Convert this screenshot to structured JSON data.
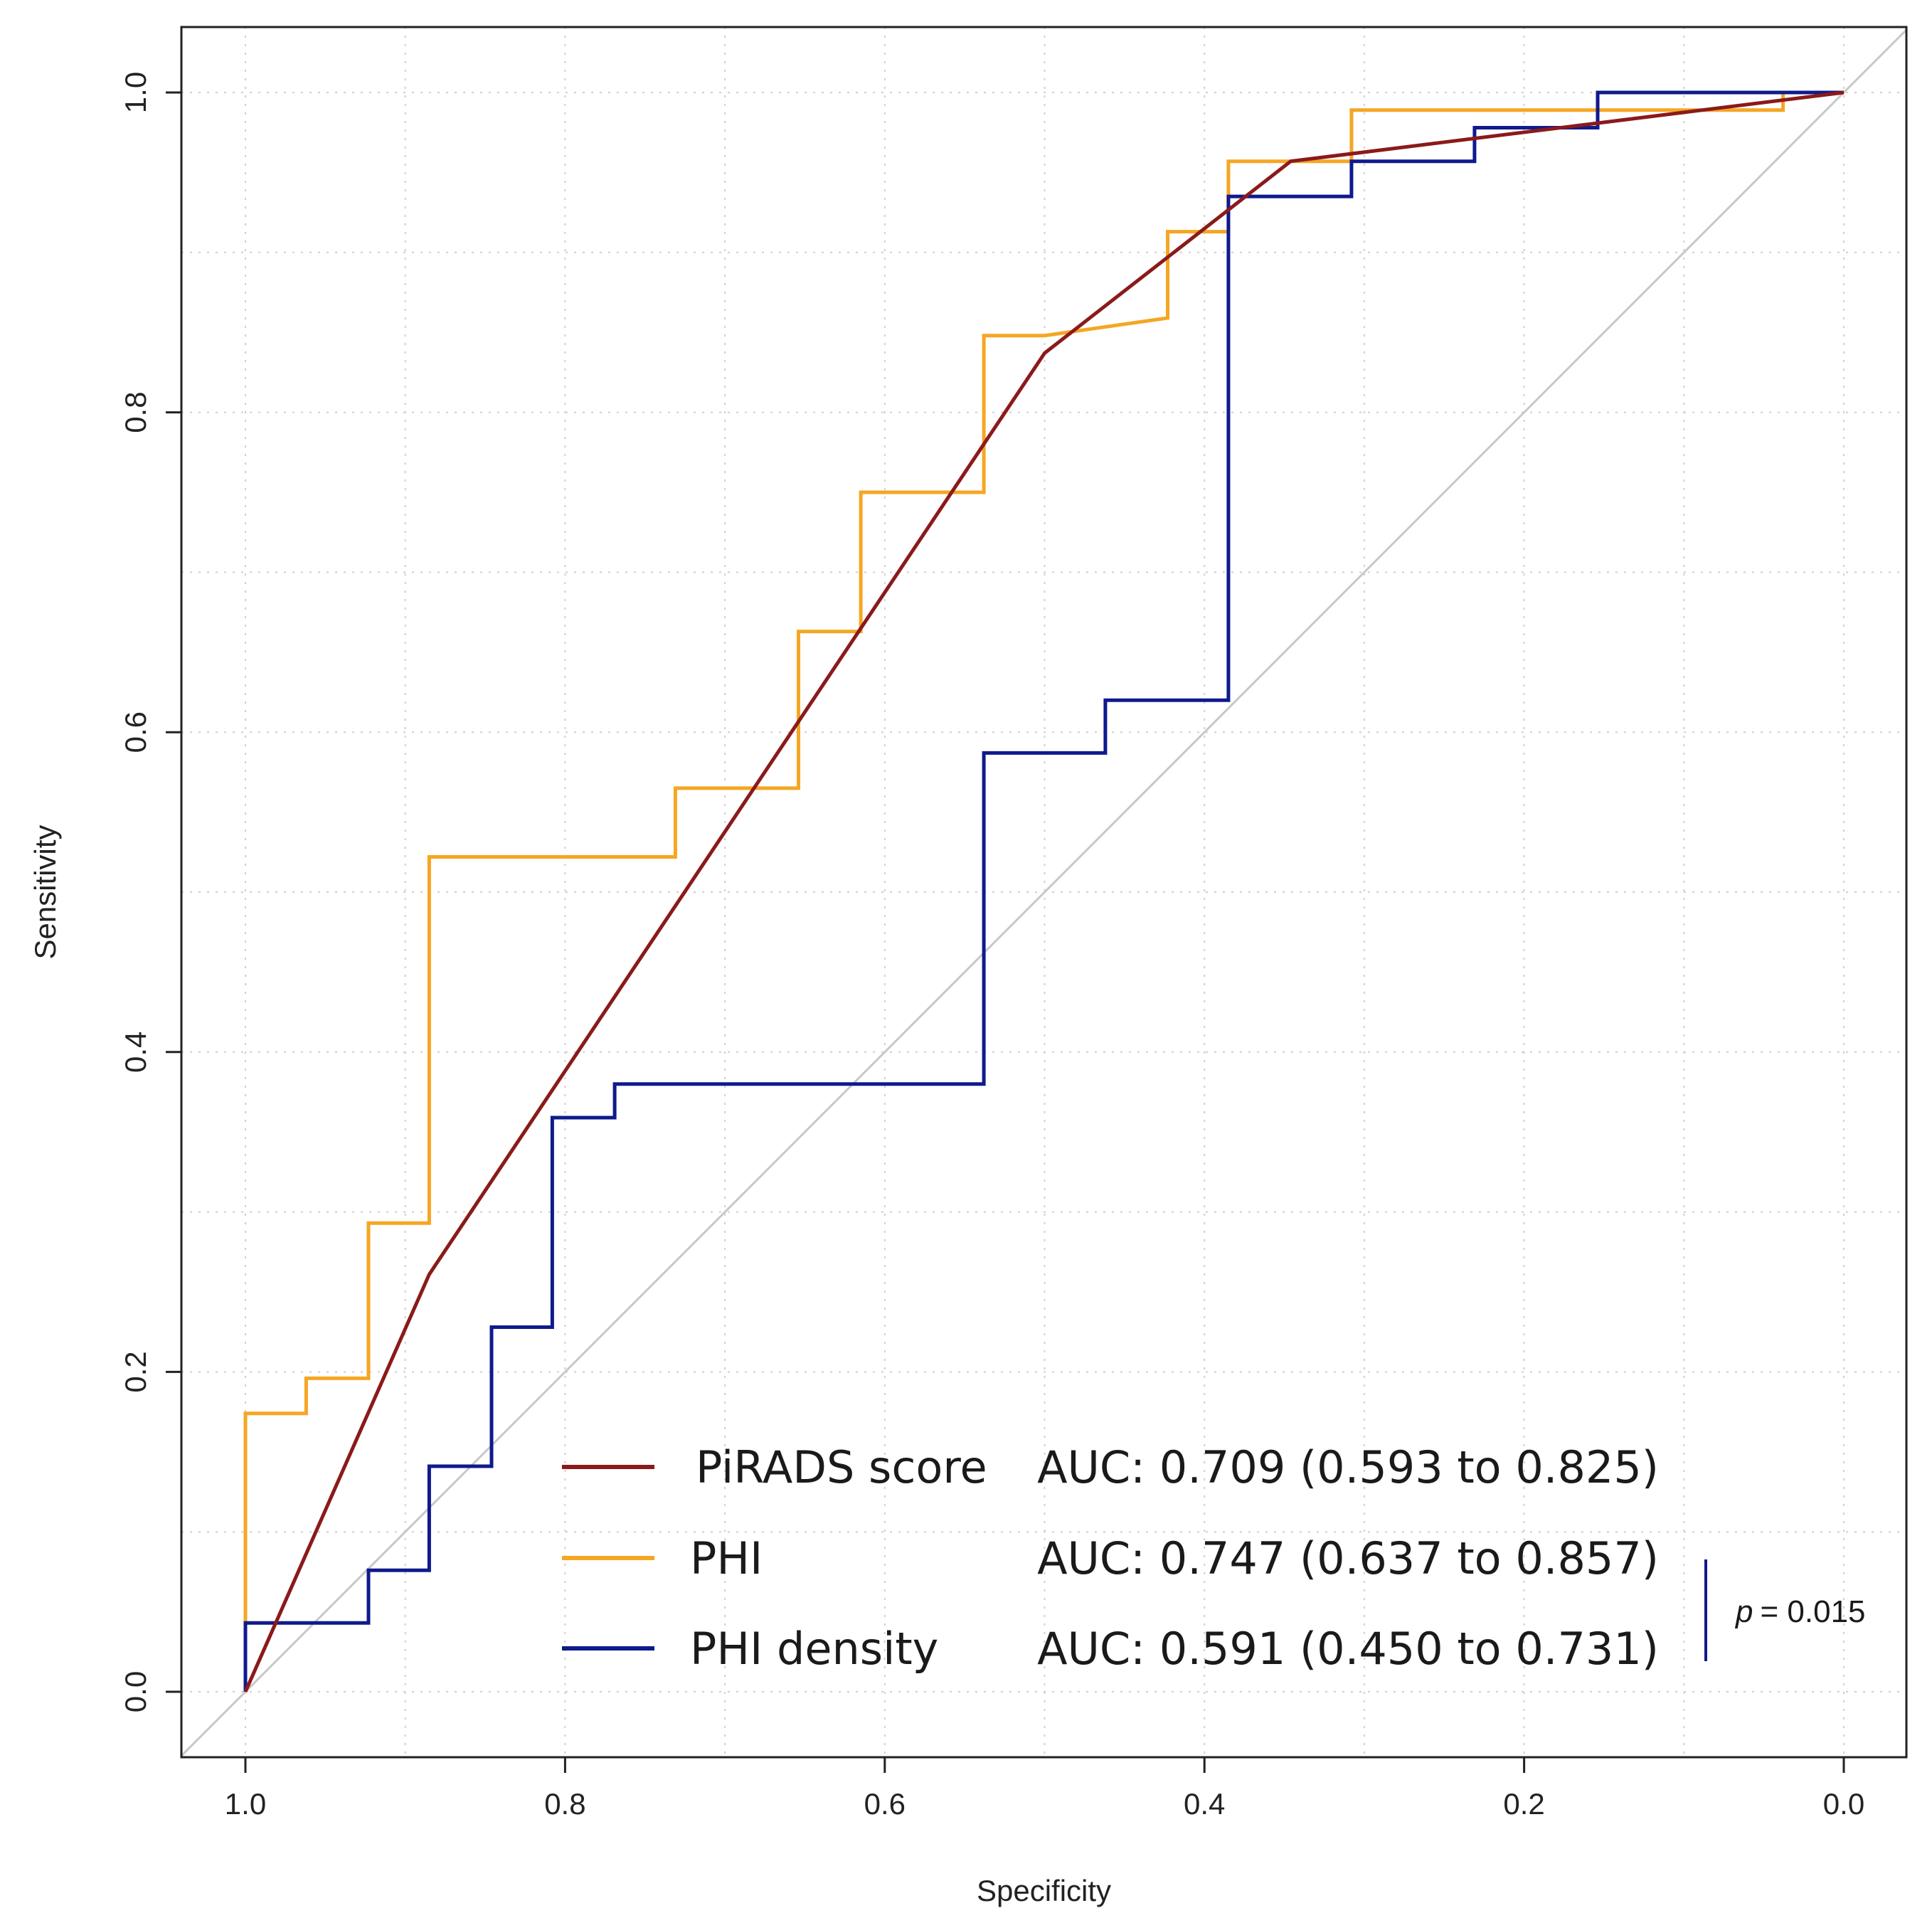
{
  "chart_data": {
    "type": "line",
    "xlabel": "Specificity",
    "ylabel": "Sensitivity",
    "xlim": [
      1.0,
      0.0
    ],
    "ylim": [
      0.0,
      1.0
    ],
    "x_reversed": true,
    "x_ticks": [
      "1.0",
      "0.8",
      "0.6",
      "0.4",
      "0.2",
      "0.0"
    ],
    "x_tick_values": [
      1.0,
      0.8,
      0.6,
      0.4,
      0.2,
      0.0
    ],
    "y_ticks": [
      "0.0",
      "0.2",
      "0.4",
      "0.6",
      "0.8",
      "1.0"
    ],
    "y_tick_values": [
      0.0,
      0.2,
      0.4,
      0.6,
      0.8,
      1.0
    ],
    "grid": true,
    "reference_line": {
      "color": "#c8c8c8"
    },
    "series": [
      {
        "name": "PiRADS score",
        "auc_text": "AUC: 0.709 (0.593 to 0.825)",
        "color": "#8B1A1A",
        "points": [
          [
            1.0,
            0.0
          ],
          [
            0.885,
            0.261
          ],
          [
            0.5,
            0.837
          ],
          [
            0.346,
            0.957
          ],
          [
            0.0,
            1.0
          ]
        ]
      },
      {
        "name": "PHI",
        "auc_text": "AUC: 0.747 (0.637 to 0.857)",
        "color": "#F5A623",
        "points": [
          [
            1.0,
            0.0
          ],
          [
            1.0,
            0.174
          ],
          [
            0.962,
            0.174
          ],
          [
            0.962,
            0.196
          ],
          [
            0.923,
            0.196
          ],
          [
            0.923,
            0.293
          ],
          [
            0.885,
            0.293
          ],
          [
            0.885,
            0.522
          ],
          [
            0.731,
            0.522
          ],
          [
            0.731,
            0.565
          ],
          [
            0.654,
            0.565
          ],
          [
            0.654,
            0.663
          ],
          [
            0.615,
            0.663
          ],
          [
            0.615,
            0.75
          ],
          [
            0.538,
            0.75
          ],
          [
            0.538,
            0.848
          ],
          [
            0.5,
            0.848
          ],
          [
            0.423,
            0.859
          ],
          [
            0.423,
            0.913
          ],
          [
            0.385,
            0.913
          ],
          [
            0.385,
            0.957
          ],
          [
            0.308,
            0.957
          ],
          [
            0.308,
            0.989
          ],
          [
            0.038,
            0.989
          ],
          [
            0.038,
            1.0
          ],
          [
            0.0,
            1.0
          ]
        ]
      },
      {
        "name": "PHI density",
        "auc_text": "AUC: 0.591 (0.450 to 0.731)",
        "color": "#0F1A8C",
        "points": [
          [
            1.0,
            0.0
          ],
          [
            1.0,
            0.043
          ],
          [
            0.923,
            0.043
          ],
          [
            0.923,
            0.076
          ],
          [
            0.885,
            0.076
          ],
          [
            0.885,
            0.141
          ],
          [
            0.846,
            0.141
          ],
          [
            0.846,
            0.228
          ],
          [
            0.808,
            0.228
          ],
          [
            0.808,
            0.359
          ],
          [
            0.769,
            0.359
          ],
          [
            0.769,
            0.38
          ],
          [
            0.538,
            0.38
          ],
          [
            0.538,
            0.587
          ],
          [
            0.462,
            0.587
          ],
          [
            0.462,
            0.62
          ],
          [
            0.385,
            0.62
          ],
          [
            0.385,
            0.935
          ],
          [
            0.308,
            0.935
          ],
          [
            0.308,
            0.957
          ],
          [
            0.231,
            0.957
          ],
          [
            0.231,
            0.978
          ],
          [
            0.154,
            0.978
          ],
          [
            0.154,
            1.0
          ],
          [
            0.038,
            1.0
          ],
          [
            0.0,
            1.0
          ]
        ]
      }
    ],
    "legend_position": "bottom-right",
    "annotation": {
      "p_label": "p",
      "p_value": "= 0.015"
    }
  }
}
